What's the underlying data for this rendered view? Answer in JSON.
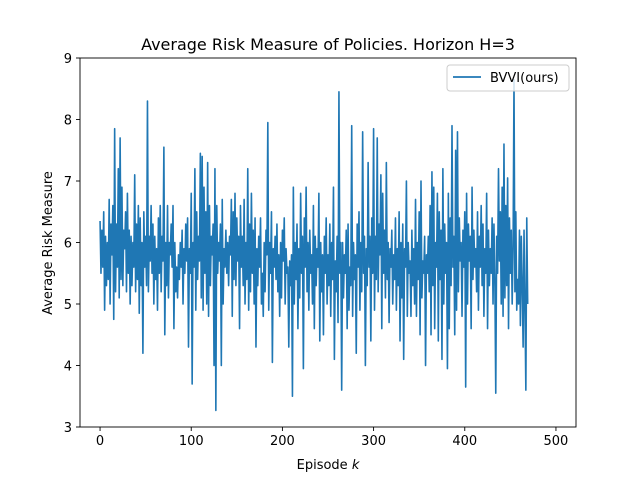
{
  "chart_data": {
    "type": "line",
    "title": "Average Risk Measure of Policies. Horizon H=3",
    "xlabel": "Episode",
    "xlabel_var": "k",
    "ylabel": "Average Risk Measure",
    "xlim": [
      -22,
      522
    ],
    "ylim": [
      3,
      9
    ],
    "xticks": [
      0,
      100,
      200,
      300,
      400,
      500
    ],
    "yticks": [
      3,
      4,
      5,
      6,
      7,
      8,
      9
    ],
    "grid": false,
    "legend_position": "top-right",
    "series": [
      {
        "name": "BVVI(ours)",
        "color": "#1f77b4",
        "x_start": 0,
        "x_step": 1,
        "y": [
          6.35,
          5.5,
          6.2,
          5.6,
          6.5,
          4.9,
          6.1,
          5.3,
          6.0,
          5.4,
          6.7,
          5.0,
          6.3,
          5.8,
          6.6,
          4.75,
          7.85,
          5.2,
          6.3,
          5.6,
          7.2,
          5.1,
          7.7,
          5.4,
          6.9,
          5.3,
          6.2,
          5.9,
          6.5,
          5.2,
          6.8,
          5.5,
          6.2,
          5.0,
          6.1,
          5.3,
          6.0,
          5.6,
          7.1,
          5.2,
          6.3,
          5.4,
          6.6,
          4.85,
          6.4,
          5.3,
          6.0,
          4.2,
          6.5,
          5.6,
          6.1,
          5.3,
          8.3,
          5.2,
          6.1,
          5.7,
          6.6,
          5.5,
          6.3,
          5.0,
          6.1,
          5.4,
          5.9,
          4.9,
          6.4,
          5.5,
          6.6,
          5.2,
          6.1,
          5.7,
          7.55,
          4.5,
          6.0,
          5.3,
          6.6,
          5.1,
          6.0,
          5.8,
          6.3,
          5.6,
          6.6,
          4.6,
          6.0,
          5.2,
          5.6,
          5.1,
          5.8,
          5.4,
          6.0,
          5.6,
          6.2,
          5.0,
          5.9,
          5.5,
          6.3,
          5.7,
          6.4,
          4.3,
          5.9,
          5.5,
          6.8,
          3.7,
          6.0,
          5.6,
          7.2,
          4.9,
          6.5,
          5.4,
          6.1,
          5.7,
          7.45,
          5.1,
          7.4,
          4.9,
          6.9,
          5.5,
          6.5,
          5.0,
          7.3,
          4.8,
          6.6,
          5.3,
          6.1,
          5.8,
          6.3,
          4.0,
          7.2,
          3.27,
          6.6,
          5.5,
          6.0,
          5.7,
          6.3,
          4.0,
          6.7,
          5.0,
          5.9,
          5.6,
          6.2,
          5.5,
          6.0,
          5.3,
          6.1,
          5.8,
          6.7,
          4.8,
          6.5,
          5.4,
          6.8,
          5.3,
          6.4,
          5.7,
          6.1,
          4.6,
          6.6,
          5.6,
          6.1,
          5.3,
          6.7,
          5.0,
          6.0,
          5.4,
          7.2,
          4.9,
          6.3,
          5.2,
          6.8,
          5.5,
          6.2,
          5.0,
          6.4,
          4.3,
          5.9,
          5.3,
          6.1,
          5.6,
          6.4,
          5.0,
          5.5,
          4.8,
          6.0,
          5.2,
          6.2,
          5.8,
          7.95,
          4.9,
          6.0,
          5.5,
          6.5,
          4.05,
          5.9,
          5.6,
          6.1,
          5.4,
          6.3,
          5.2,
          5.8,
          4.8,
          6.0,
          5.1,
          6.2,
          5.7,
          6.4,
          5.0,
          5.9,
          5.5,
          5.6,
          4.3,
          5.7,
          5.3,
          5.8,
          3.5,
          6.9,
          5.0,
          6.0,
          5.4,
          6.3,
          4.6,
          5.9,
          5.1,
          6.8,
          5.5,
          6.1,
          3.95,
          6.4,
          5.6,
          6.9,
          5.2,
          6.0,
          4.9,
          6.2,
          5.5,
          5.8,
          5.0,
          6.6,
          4.6,
          6.1,
          5.3,
          5.9,
          5.6,
          6.8,
          4.4,
          6.0,
          5.2,
          5.8,
          4.5,
          6.1,
          5.5,
          6.4,
          5.0,
          5.8,
          5.3,
          6.3,
          4.8,
          6.0,
          5.4,
          6.9,
          4.1,
          5.7,
          5.2,
          6.1,
          4.7,
          8.45,
          5.5,
          6.0,
          3.6,
          6.0,
          5.1,
          5.8,
          5.5,
          6.2,
          4.6,
          6.3,
          4.9,
          5.6,
          5.3,
          7.9,
          4.8,
          6.0,
          5.4,
          5.8,
          4.2,
          6.3,
          5.6,
          6.5,
          4.9,
          6.0,
          5.2,
          7.8,
          5.5,
          6.1,
          4.0,
          5.9,
          5.3,
          7.3,
          5.6,
          6.1,
          4.4,
          6.4,
          5.5,
          7.85,
          4.9,
          6.1,
          5.4,
          7.7,
          5.2,
          6.3,
          5.8,
          7.1,
          4.6,
          6.8,
          5.5,
          6.2,
          5.1,
          7.3,
          5.4,
          6.0,
          4.7,
          5.9,
          5.6,
          6.2,
          5.0,
          5.8,
          5.4,
          6.4,
          4.9,
          5.9,
          5.3,
          6.5,
          4.4,
          6.0,
          5.1,
          6.3,
          4.1,
          5.9,
          5.6,
          7.0,
          4.8,
          6.0,
          5.5,
          5.7,
          4.8,
          6.2,
          5.3,
          5.9,
          5.0,
          6.7,
          4.8,
          6.0,
          5.4,
          6.5,
          4.5,
          7.0,
          5.1,
          5.7,
          5.5,
          6.1,
          4.0,
          5.8,
          5.5,
          6.1,
          5.2,
          6.6,
          4.5,
          7.15,
          5.3,
          6.9,
          4.6,
          6.0,
          5.6,
          6.8,
          4.4,
          6.5,
          5.4,
          6.2,
          4.1,
          7.2,
          5.0,
          6.3,
          5.5,
          6.0,
          3.95,
          6.8,
          4.6,
          6.4,
          5.3,
          7.9,
          5.6,
          6.1,
          4.5,
          7.5,
          4.9,
          7.8,
          5.2,
          6.4,
          5.7,
          6.0,
          4.8,
          6.2,
          5.6,
          6.5,
          3.65,
          6.8,
          5.0,
          6.3,
          5.7,
          6.1,
          4.6,
          6.9,
          5.4,
          6.2,
          5.6,
          5.9,
          5.2,
          6.5,
          4.9,
          6.1,
          5.6,
          6.6,
          5.3,
          6.3,
          4.8,
          5.9,
          5.5,
          6.8,
          4.6,
          6.2,
          5.3,
          5.9,
          5.5,
          6.4,
          5.0,
          6.3,
          5.4,
          3.55,
          6.1,
          5.5,
          7.2,
          5.7,
          6.5,
          5.0,
          6.9,
          4.8,
          7.6,
          5.1,
          6.6,
          5.3,
          7.05,
          4.6,
          6.4,
          5.5,
          6.2,
          5.0,
          5.9,
          8.65,
          5.2,
          6.5,
          4.9,
          5.4,
          5.0,
          6.2,
          4.65,
          6.1,
          5.3,
          4.3,
          6.2,
          5.0,
          3.6,
          6.4,
          5.0
        ]
      }
    ]
  }
}
